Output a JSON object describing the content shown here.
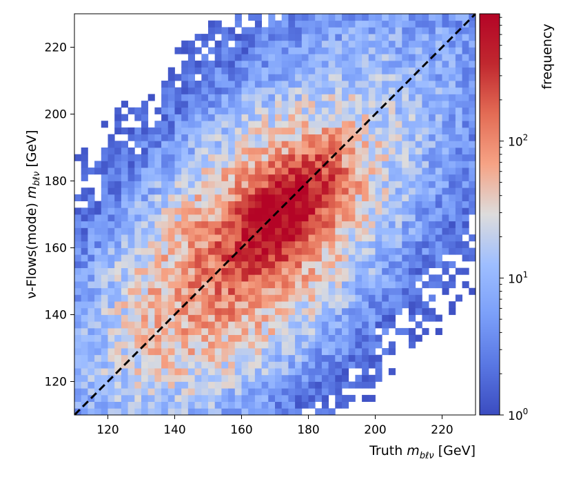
{
  "chart_data": {
    "type": "heatmap",
    "title": "",
    "xlabel": "Truth",
    "xlabel_symbol": "m",
    "xlabel_subscript": "bℓν",
    "xlabel_unit": "[GeV]",
    "ylabel": "ν-Flows(mode)",
    "ylabel_symbol": "m",
    "ylabel_subscript": "bℓν",
    "ylabel_unit": "[GeV]",
    "xlim": [
      110,
      230
    ],
    "ylim": [
      110,
      230
    ],
    "xticks": [
      120,
      140,
      160,
      180,
      200,
      220
    ],
    "yticks": [
      120,
      140,
      160,
      180,
      200,
      220
    ],
    "xtick_labels": [
      "120",
      "140",
      "160",
      "180",
      "200",
      "220"
    ],
    "ytick_labels": [
      "120",
      "140",
      "160",
      "180",
      "200",
      "220"
    ],
    "bin_width": 2,
    "reference_line": {
      "style": "dashed",
      "color": "#000000",
      "from": [
        110,
        110
      ],
      "to": [
        230,
        230
      ]
    },
    "colorbar": {
      "label": "frequency",
      "scale": "log",
      "colormap": "coolwarm",
      "range": [
        1,
        850
      ],
      "tick_labels": [
        {
          "value": 1,
          "base": "10",
          "exp": "0"
        },
        {
          "value": 10,
          "base": "10",
          "exp": "1"
        },
        {
          "value": 100,
          "base": "10",
          "exp": "2"
        }
      ]
    },
    "density_model": {
      "components": [
        {
          "cx": 172,
          "cy": 170,
          "sd_major": 11,
          "sd_minor": 5.5,
          "angle_deg": 48,
          "weight": 800
        },
        {
          "cx": 162,
          "cy": 160,
          "sd_major": 25,
          "sd_minor": 13,
          "angle_deg": 47,
          "weight": 110
        },
        {
          "cx": 170,
          "cy": 168,
          "sd_major": 55,
          "sd_minor": 23,
          "angle_deg": 50,
          "weight": 14
        }
      ],
      "noise_seed": 7,
      "noise_amplitude": 0.9,
      "empty_threshold": 1.1
    }
  }
}
